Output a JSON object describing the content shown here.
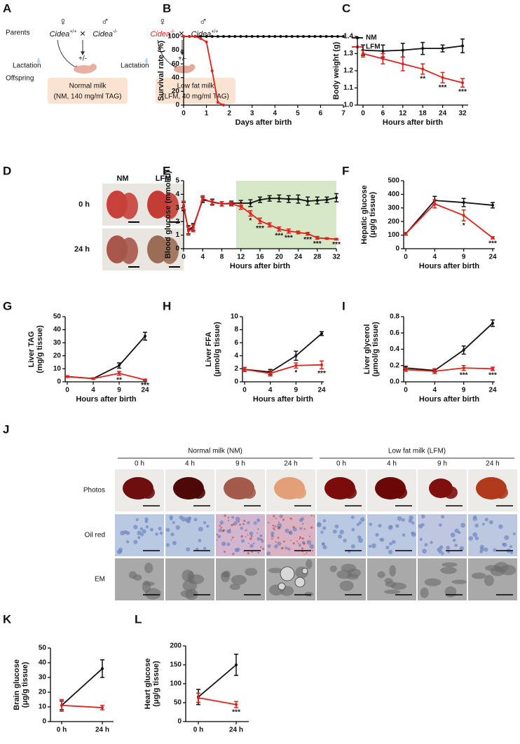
{
  "panel_labels": [
    "A",
    "B",
    "C",
    "D",
    "E",
    "F",
    "G",
    "H",
    "I",
    "J",
    "K",
    "L"
  ],
  "panel_a": {
    "row_labels": [
      "Parents",
      "Lactation",
      "Offspring"
    ],
    "left": {
      "female": "♀",
      "male": "♂",
      "cross": "×",
      "mother": {
        "gene": "Cidea",
        "genotype": "+/+"
      },
      "father": {
        "gene": "Cidea",
        "genotype": "-/-"
      },
      "offspring": "+/-",
      "milk": "Normal milk",
      "milk_detail": "(NM, 140 mg/ml TAG)"
    },
    "right": {
      "female": "♀",
      "male": "♂",
      "cross": "×",
      "mother": {
        "gene": "Cidea",
        "genotype": "-/-"
      },
      "father": {
        "gene": "Cidea",
        "genotype": "+/+"
      },
      "lactation": "Lactation",
      "offspring": "+/-",
      "milk": "Low fat milk",
      "milk_detail": "(LFM, 40 mg/ml TAG)"
    }
  },
  "panel_d": {
    "columns": [
      "NM",
      "LFM"
    ],
    "rows": [
      "0 h",
      "24 h"
    ]
  },
  "panel_j": {
    "groups": [
      {
        "title": "Normal milk (NM)",
        "times": [
          "0 h",
          "4 h",
          "9 h",
          "24 h"
        ]
      },
      {
        "title": "Low fat milk (LFM)",
        "times": [
          "0 h",
          "4 h",
          "9 h",
          "24 h"
        ]
      }
    ],
    "rows": [
      "Photos",
      "Oil red",
      "EM"
    ]
  },
  "chart_data": [
    {
      "type": "line",
      "ylabel": [
        "Survival rate (%)"
      ],
      "xlabel": "Days after birth",
      "x": [
        0,
        0.25,
        0.5,
        0.75,
        1,
        1.25,
        1.5,
        1.75,
        2,
        2.25,
        2.5,
        2.75,
        3,
        3.25,
        3.5,
        3.75,
        4,
        4.25,
        4.5,
        4.75,
        5,
        5.25,
        5.5,
        5.75,
        6,
        6.25,
        6.5,
        6.75,
        7
      ],
      "xlim": [
        0,
        7
      ],
      "xticks": [
        0,
        1,
        2,
        3,
        4,
        5,
        6,
        7
      ],
      "ylim": [
        0,
        100
      ],
      "yticks": [
        0,
        20,
        40,
        60,
        80,
        100
      ],
      "legend": "right",
      "series": [
        {
          "name": "NM",
          "color": "#111111",
          "values": [
            100,
            100,
            100,
            100,
            100,
            100,
            100,
            100,
            100,
            100,
            100,
            100,
            100,
            100,
            100,
            100,
            100,
            100,
            100,
            100,
            100,
            100,
            100,
            100,
            100,
            100,
            100,
            100,
            100
          ]
        },
        {
          "name": "LFM",
          "color": "#e0201b",
          "values": [
            100,
            100,
            100,
            97,
            92,
            50,
            4,
            0,
            null,
            null,
            null,
            null,
            null,
            null,
            null,
            null,
            null,
            null,
            null,
            null,
            null,
            null,
            null,
            null,
            null,
            null,
            null,
            null,
            null
          ]
        }
      ]
    },
    {
      "type": "line",
      "ylabel": [
        "Body weight (g)"
      ],
      "xlabel": "Hours after birth",
      "categories": [
        "0",
        "6",
        "12",
        "18",
        "24",
        "32"
      ],
      "ylim": [
        1,
        1.4
      ],
      "yticks": [
        {
          "value": 1,
          "label": "1.0"
        },
        1.1,
        1.2,
        1.3,
        1.4
      ],
      "series": [
        {
          "name": "NM",
          "color": "#111111",
          "values": [
            1.32,
            1.315,
            1.32,
            1.33,
            1.33,
            1.345
          ],
          "errors": [
            0.03,
            0.035,
            0.04,
            0.035,
            0.02,
            0.04
          ]
        },
        {
          "name": "LFM",
          "color": "#e0201b",
          "values": [
            1.3,
            1.27,
            1.24,
            1.21,
            1.16,
            1.13
          ],
          "errors": [
            0.02,
            0.03,
            0.04,
            0.03,
            0.03,
            0.025
          ]
        }
      ],
      "annotations": [
        {
          "text": "**",
          "x": "18"
        },
        {
          "text": "***",
          "x": "24"
        },
        {
          "text": "***",
          "x": "32"
        }
      ]
    },
    {
      "type": "line",
      "ylabel": [
        "Blood glucose (mmol/L)"
      ],
      "xlabel": "Hours after birth",
      "x": [
        0,
        1,
        2,
        4,
        6,
        8,
        10,
        12,
        14,
        16,
        18,
        20,
        22,
        24,
        26,
        28,
        30,
        32
      ],
      "xlim": [
        0,
        32
      ],
      "xticks": [
        0,
        4,
        8,
        12,
        16,
        20,
        24,
        28,
        32
      ],
      "ylim": [
        0,
        5
      ],
      "yticks": [
        0,
        1,
        2,
        3,
        4,
        5
      ],
      "shade": [
        11,
        32
      ],
      "shade_color": "#d5e7c6",
      "series": [
        {
          "name": "NM",
          "color": "#111111",
          "values": [
            3.1,
            1.4,
            1.6,
            3.6,
            3.45,
            3.3,
            3.35,
            3.35,
            3.35,
            3.6,
            3.7,
            3.7,
            3.65,
            3.65,
            3.5,
            3.55,
            3.6,
            3.75
          ],
          "errors": [
            0.3,
            0.3,
            0.25,
            0.2,
            0.2,
            0.15,
            0.15,
            0.2,
            0.25,
            0.2,
            0.2,
            0.25,
            0.25,
            0.3,
            0.3,
            0.25,
            0.2,
            0.3
          ]
        },
        {
          "name": "LFM",
          "color": "#e0201b",
          "values": [
            3.2,
            1.3,
            1.5,
            3.7,
            3.4,
            3.3,
            3.3,
            3.1,
            2.6,
            2.05,
            1.75,
            1.45,
            1.3,
            1.2,
            1.1,
            0.8,
            0.75,
            0.7
          ],
          "errors": [
            0.3,
            0.3,
            0.25,
            0.2,
            0.2,
            0.15,
            0.15,
            0.2,
            0.2,
            0.2,
            0.15,
            0.15,
            0.15,
            0.1,
            0.1,
            0.1,
            0.05,
            0.05
          ]
        }
      ],
      "annotations": [
        {
          "text": "*",
          "x": 14
        },
        {
          "text": "***",
          "x": 16
        },
        {
          "text": "***",
          "x": 20
        },
        {
          "text": "***",
          "x": 22
        },
        {
          "text": "***",
          "x": 26
        },
        {
          "text": "***",
          "x": 28
        },
        {
          "text": "***",
          "x": 32
        }
      ]
    },
    {
      "type": "line",
      "ylabel": [
        "Hepatic glucose",
        "(μg/g tissue)"
      ],
      "xlabel": "Hours after birth",
      "categories": [
        "0",
        "4",
        "9",
        "24"
      ],
      "ylim": [
        0,
        500
      ],
      "yticks": [
        0,
        100,
        200,
        300,
        400,
        500
      ],
      "series": [
        {
          "name": "NM",
          "color": "#111111",
          "values": [
            110,
            355,
            340,
            320
          ],
          "errors": [
            10,
            30,
            30,
            20
          ]
        },
        {
          "name": "LFM",
          "color": "#e0201b",
          "values": [
            110,
            330,
            245,
            80
          ],
          "errors": [
            10,
            30,
            40,
            8
          ]
        }
      ],
      "annotations": [
        {
          "text": "*",
          "x": "9"
        },
        {
          "text": "***",
          "x": "24"
        }
      ]
    },
    {
      "type": "line",
      "ylabel": [
        "Liver TAG",
        "(mg/g tissue)"
      ],
      "xlabel": "Hours after birth",
      "categories": [
        "0",
        "4",
        "9",
        "24"
      ],
      "ylim": [
        0,
        50
      ],
      "yticks": [
        0,
        10,
        20,
        30,
        40,
        50
      ],
      "series": [
        {
          "name": "NM",
          "color": "#111111",
          "values": [
            4,
            2.5,
            12.5,
            35
          ],
          "errors": [
            0.5,
            0.5,
            2,
            3
          ]
        },
        {
          "name": "LFM",
          "color": "#e0201b",
          "values": [
            4,
            2.5,
            6.5,
            1.5
          ],
          "errors": [
            0.5,
            0.5,
            1.5,
            0.5
          ]
        }
      ],
      "annotations": [
        {
          "text": "**",
          "x": "9"
        },
        {
          "text": "***",
          "x": "24"
        }
      ]
    },
    {
      "type": "line",
      "ylabel": [
        "Liver FFA",
        "(μmol/g tissue)"
      ],
      "xlabel": "Hours after birth",
      "categories": [
        "0",
        "4",
        "9",
        "24"
      ],
      "ylim": [
        0,
        10
      ],
      "yticks": [
        0,
        2,
        4,
        6,
        8,
        10
      ],
      "series": [
        {
          "name": "NM",
          "color": "#111111",
          "values": [
            1.9,
            1.5,
            4,
            7.4
          ],
          "errors": [
            0.3,
            0.4,
            0.7,
            0.3
          ]
        },
        {
          "name": "LFM",
          "color": "#e0201b",
          "values": [
            1.9,
            1.3,
            2.5,
            2.6
          ],
          "errors": [
            0.3,
            0.4,
            0.4,
            0.6
          ]
        }
      ],
      "annotations": [
        {
          "text": "*",
          "x": "9"
        },
        {
          "text": "***",
          "x": "24"
        }
      ]
    },
    {
      "type": "line",
      "ylabel": [
        "Liver glycerol",
        "(μmol/g tissue)"
      ],
      "xlabel": "Hours after birth",
      "categories": [
        "0",
        "4",
        "9",
        "24"
      ],
      "ylim": [
        0,
        0.8
      ],
      "yticks": [
        {
          "value": 0,
          "label": "0.0"
        },
        0.2,
        0.4,
        0.6,
        0.8
      ],
      "series": [
        {
          "name": "NM",
          "color": "#111111",
          "values": [
            0.17,
            0.14,
            0.39,
            0.72
          ],
          "errors": [
            0.02,
            0.02,
            0.05,
            0.04
          ]
        },
        {
          "name": "LFM",
          "color": "#e0201b",
          "values": [
            0.15,
            0.13,
            0.17,
            0.16
          ],
          "errors": [
            0.02,
            0.03,
            0.03,
            0.02
          ]
        }
      ],
      "annotations": [
        {
          "text": "***",
          "x": "9"
        },
        {
          "text": "***",
          "x": "24"
        }
      ]
    },
    {
      "type": "line",
      "ylabel": [
        "Brain glucose",
        "(μg/g tissue)"
      ],
      "categories": [
        "0 h",
        "24 h"
      ],
      "ylim": [
        0,
        50
      ],
      "yticks": [
        0,
        10,
        20,
        30,
        40,
        50
      ],
      "series": [
        {
          "name": "NM",
          "color": "#111111",
          "values": [
            11,
            36
          ],
          "errors": [
            3,
            6
          ]
        },
        {
          "name": "LFM",
          "color": "#e0201b",
          "values": [
            11,
            9.5
          ],
          "errors": [
            4,
            1.5
          ]
        }
      ]
    },
    {
      "type": "line",
      "ylabel": [
        "Heart glucose",
        "(μg/g tissue)"
      ],
      "categories": [
        "0 h",
        "24 h"
      ],
      "ylim": [
        0,
        200
      ],
      "yticks": [
        0,
        50,
        100,
        150,
        200
      ],
      "series": [
        {
          "name": "NM",
          "color": "#111111",
          "values": [
            65,
            150
          ],
          "errors": [
            20,
            28
          ]
        },
        {
          "name": "LFM",
          "color": "#e0201b",
          "values": [
            63,
            45
          ],
          "errors": [
            12,
            8
          ]
        }
      ],
      "annotations": [
        {
          "text": "***",
          "x": "24 h"
        }
      ]
    }
  ]
}
